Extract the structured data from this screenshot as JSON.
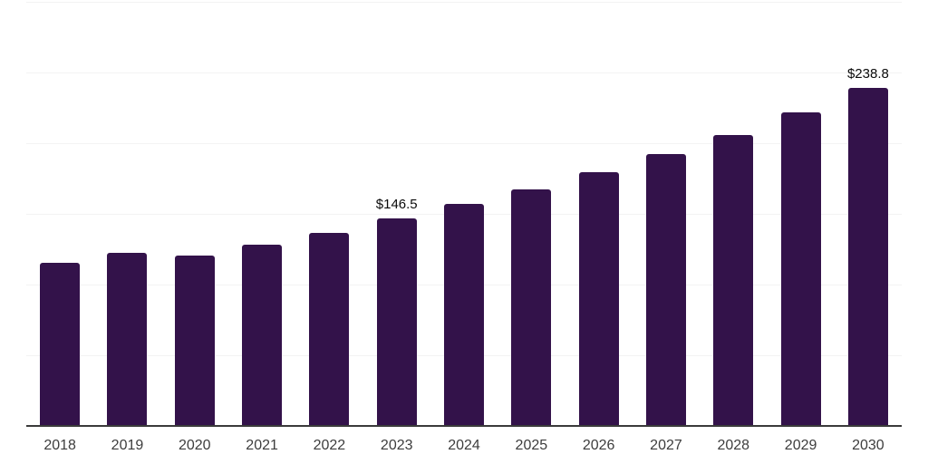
{
  "chart_data": {
    "type": "bar",
    "title": "",
    "xlabel": "",
    "ylabel": "",
    "categories": [
      "2018",
      "2019",
      "2020",
      "2021",
      "2022",
      "2023",
      "2024",
      "2025",
      "2026",
      "2027",
      "2028",
      "2029",
      "2030"
    ],
    "values": [
      115.4,
      122.4,
      120.5,
      128.2,
      136.5,
      146.5,
      157.0,
      167.3,
      179.5,
      192.3,
      205.8,
      221.8,
      238.8
    ],
    "data_labels": [
      {
        "category": "2023",
        "text": "$146.5"
      },
      {
        "category": "2030",
        "text": "$238.8"
      }
    ],
    "ylim": [
      0,
      300
    ],
    "grid_step": 50,
    "grid": "horizontal-only",
    "y_tick_labels_visible": false,
    "legend": "none",
    "colors": {
      "bar": "#33124A",
      "axis_line": "#3A3A3A",
      "gridline": "#F3F3F3",
      "x_tick_label": "#3D3D3D",
      "data_label": "#0A0A0A",
      "background": "#FFFFFF"
    }
  }
}
